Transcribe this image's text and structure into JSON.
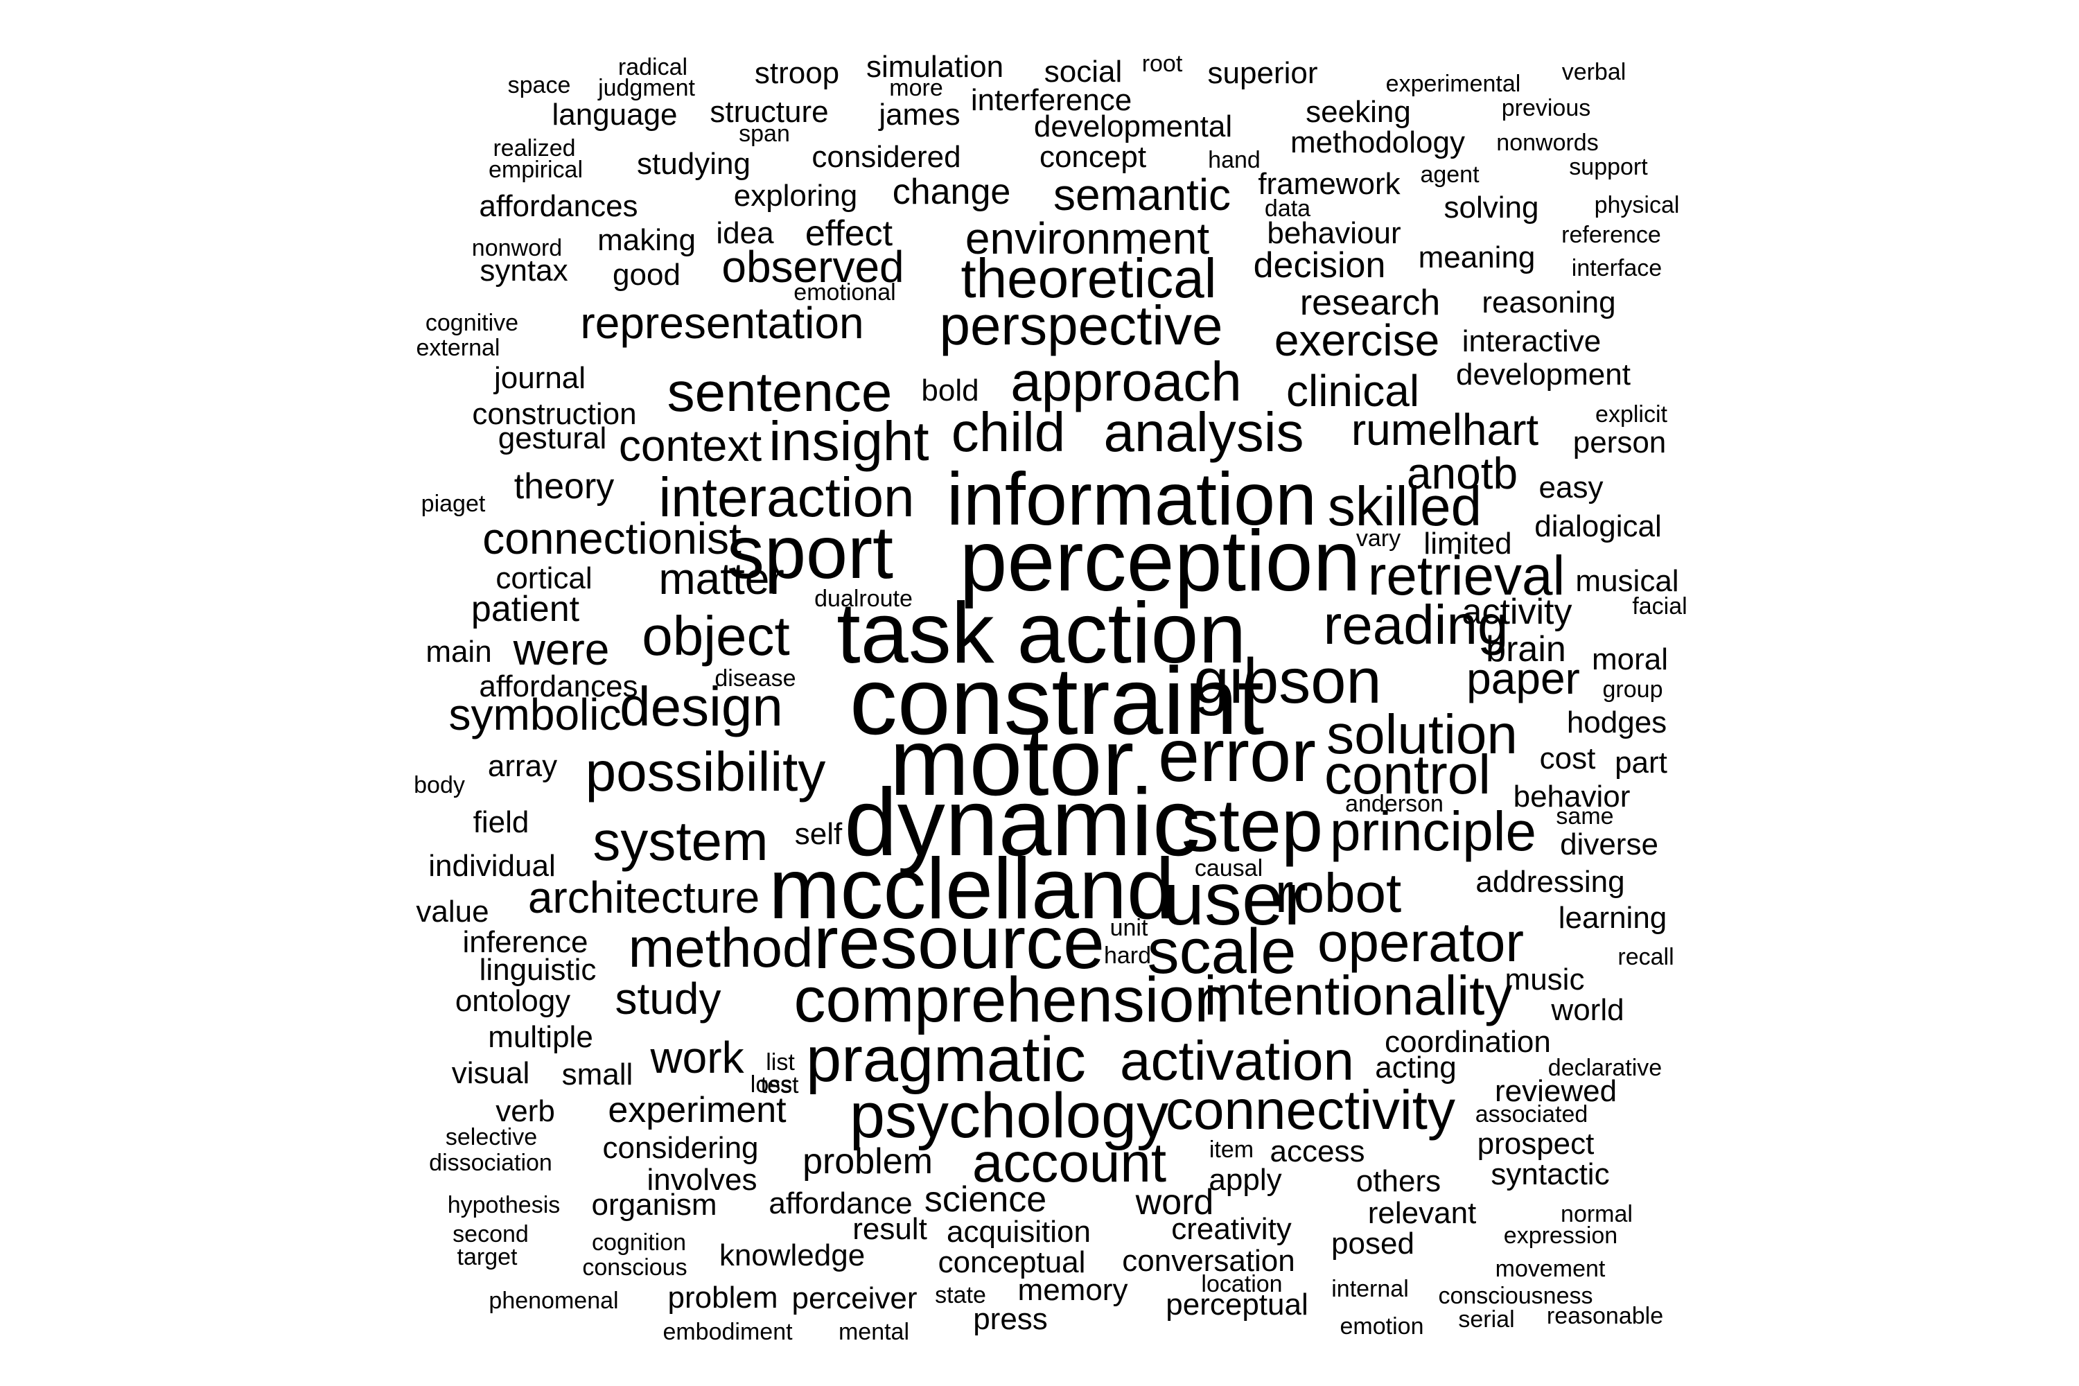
{
  "text_color": "#000000",
  "background_color": "#ffffff",
  "words": [
    {
      "text": "radical",
      "size": 1
    },
    {
      "text": "stroop",
      "size": 2
    },
    {
      "text": "simulation",
      "size": 2
    },
    {
      "text": "social",
      "size": 2
    },
    {
      "text": "root",
      "size": 1
    },
    {
      "text": "superior",
      "size": 2
    },
    {
      "text": "verbal",
      "size": 1
    },
    {
      "text": "space",
      "size": 1
    },
    {
      "text": "judgment",
      "size": 1
    },
    {
      "text": "more",
      "size": 1
    },
    {
      "text": "experimental",
      "size": 1
    },
    {
      "text": "language",
      "size": 2
    },
    {
      "text": "structure",
      "size": 2
    },
    {
      "text": "james",
      "size": 2
    },
    {
      "text": "interference",
      "size": 2
    },
    {
      "text": "seeking",
      "size": 2
    },
    {
      "text": "previous",
      "size": 1
    },
    {
      "text": "span",
      "size": 1
    },
    {
      "text": "developmental",
      "size": 2
    },
    {
      "text": "realized",
      "size": 1
    },
    {
      "text": "methodology",
      "size": 2
    },
    {
      "text": "nonwords",
      "size": 1
    },
    {
      "text": "empirical",
      "size": 1
    },
    {
      "text": "studying",
      "size": 2
    },
    {
      "text": "considered",
      "size": 2
    },
    {
      "text": "concept",
      "size": 2
    },
    {
      "text": "hand",
      "size": 1
    },
    {
      "text": "agent",
      "size": 1
    },
    {
      "text": "support",
      "size": 1
    },
    {
      "text": "framework",
      "size": 2
    },
    {
      "text": "exploring",
      "size": 2
    },
    {
      "text": "change",
      "size": 3
    },
    {
      "text": "semantic",
      "size": 4
    },
    {
      "text": "affordances",
      "size": 2
    },
    {
      "text": "data",
      "size": 1
    },
    {
      "text": "solving",
      "size": 2
    },
    {
      "text": "physical",
      "size": 1
    },
    {
      "text": "idea",
      "size": 2
    },
    {
      "text": "effect",
      "size": 3
    },
    {
      "text": "environment",
      "size": 4
    },
    {
      "text": "behaviour",
      "size": 2
    },
    {
      "text": "nonword",
      "size": 1
    },
    {
      "text": "making",
      "size": 2
    },
    {
      "text": "reference",
      "size": 1
    },
    {
      "text": "meaning",
      "size": 2
    },
    {
      "text": "observed",
      "size": 4
    },
    {
      "text": "decision",
      "size": 3
    },
    {
      "text": "syntax",
      "size": 2
    },
    {
      "text": "good",
      "size": 2
    },
    {
      "text": "interface",
      "size": 1
    },
    {
      "text": "theoretical",
      "size": 5
    },
    {
      "text": "emotional",
      "size": 1
    },
    {
      "text": "research",
      "size": 3
    },
    {
      "text": "reasoning",
      "size": 2
    },
    {
      "text": "cognitive",
      "size": 1
    },
    {
      "text": "representation",
      "size": 4
    },
    {
      "text": "perspective",
      "size": 5
    },
    {
      "text": "exercise",
      "size": 4
    },
    {
      "text": "external",
      "size": 1
    },
    {
      "text": "interactive",
      "size": 2
    },
    {
      "text": "journal",
      "size": 2
    },
    {
      "text": "development",
      "size": 2
    },
    {
      "text": "bold",
      "size": 2
    },
    {
      "text": "approach",
      "size": 5
    },
    {
      "text": "sentence",
      "size": 5
    },
    {
      "text": "clinical",
      "size": 4
    },
    {
      "text": "construction",
      "size": 2
    },
    {
      "text": "explicit",
      "size": 1
    },
    {
      "text": "rumelhart",
      "size": 4
    },
    {
      "text": "gestural",
      "size": 2
    },
    {
      "text": "context",
      "size": 4
    },
    {
      "text": "insight",
      "size": 5
    },
    {
      "text": "child",
      "size": 5
    },
    {
      "text": "analysis",
      "size": 5
    },
    {
      "text": "person",
      "size": 2
    },
    {
      "text": "anotb",
      "size": 4
    },
    {
      "text": "theory",
      "size": 3
    },
    {
      "text": "easy",
      "size": 2
    },
    {
      "text": "piaget",
      "size": 1
    },
    {
      "text": "interaction",
      "size": 5
    },
    {
      "text": "information",
      "size": 7
    },
    {
      "text": "skilled",
      "size": 5
    },
    {
      "text": "connectionist",
      "size": 4
    },
    {
      "text": "vary",
      "size": 1
    },
    {
      "text": "dialogical",
      "size": 2
    },
    {
      "text": "limited",
      "size": 2
    },
    {
      "text": "sport",
      "size": 7
    },
    {
      "text": "perception",
      "size": 8
    },
    {
      "text": "cortical",
      "size": 2
    },
    {
      "text": "matter",
      "size": 4
    },
    {
      "text": "retrieval",
      "size": 5
    },
    {
      "text": "musical",
      "size": 2
    },
    {
      "text": "dualroute",
      "size": 1
    },
    {
      "text": "patient",
      "size": 3
    },
    {
      "text": "activity",
      "size": 3
    },
    {
      "text": "facial",
      "size": 1
    },
    {
      "text": "task",
      "size": 8
    },
    {
      "text": "action",
      "size": 8
    },
    {
      "text": "reading",
      "size": 5
    },
    {
      "text": "main",
      "size": 2
    },
    {
      "text": "were",
      "size": 4
    },
    {
      "text": "object",
      "size": 5
    },
    {
      "text": "brain",
      "size": 3
    },
    {
      "text": "moral",
      "size": 2
    },
    {
      "text": "disease",
      "size": 1
    },
    {
      "text": "paper",
      "size": 4
    },
    {
      "text": "group",
      "size": 1
    },
    {
      "text": "affordances",
      "size": 2
    },
    {
      "text": "gibson",
      "size": 6
    },
    {
      "text": "constraint",
      "size": 9
    },
    {
      "text": "symbolic",
      "size": 4
    },
    {
      "text": "design",
      "size": 5
    },
    {
      "text": "hodges",
      "size": 2
    },
    {
      "text": "solution",
      "size": 5
    },
    {
      "text": "cost",
      "size": 2
    },
    {
      "text": "array",
      "size": 2
    },
    {
      "text": "motor",
      "size": 9
    },
    {
      "text": "error",
      "size": 7
    },
    {
      "text": "part",
      "size": 2
    },
    {
      "text": "possibility",
      "size": 5
    },
    {
      "text": "control",
      "size": 5
    },
    {
      "text": "body",
      "size": 1
    },
    {
      "text": "behavior",
      "size": 2
    },
    {
      "text": "anderson",
      "size": 1
    },
    {
      "text": "same",
      "size": 1
    },
    {
      "text": "field",
      "size": 2
    },
    {
      "text": "dynamic",
      "size": 9
    },
    {
      "text": "step",
      "size": 7
    },
    {
      "text": "principle",
      "size": 5
    },
    {
      "text": "system",
      "size": 5
    },
    {
      "text": "self",
      "size": 2
    },
    {
      "text": "diverse",
      "size": 2
    },
    {
      "text": "individual",
      "size": 2
    },
    {
      "text": "causal",
      "size": 1
    },
    {
      "text": "mcclelland",
      "size": 8
    },
    {
      "text": "addressing",
      "size": 2
    },
    {
      "text": "architecture",
      "size": 4
    },
    {
      "text": "user",
      "size": 7
    },
    {
      "text": "robot",
      "size": 5
    },
    {
      "text": "value",
      "size": 2
    },
    {
      "text": "learning",
      "size": 2
    },
    {
      "text": "unit",
      "size": 1
    },
    {
      "text": "inference",
      "size": 2
    },
    {
      "text": "operator",
      "size": 5
    },
    {
      "text": "method",
      "size": 5
    },
    {
      "text": "resource",
      "size": 7
    },
    {
      "text": "scale",
      "size": 6
    },
    {
      "text": "hard",
      "size": 1
    },
    {
      "text": "recall",
      "size": 1
    },
    {
      "text": "linguistic",
      "size": 2
    },
    {
      "text": "music",
      "size": 2
    },
    {
      "text": "intentionality",
      "size": 5
    },
    {
      "text": "ontology",
      "size": 2
    },
    {
      "text": "study",
      "size": 4
    },
    {
      "text": "comprehension",
      "size": 6
    },
    {
      "text": "world",
      "size": 2
    },
    {
      "text": "multiple",
      "size": 2
    },
    {
      "text": "coordination",
      "size": 2
    },
    {
      "text": "work",
      "size": 4
    },
    {
      "text": "list",
      "size": 1
    },
    {
      "text": "activation",
      "size": 5
    },
    {
      "text": "pragmatic",
      "size": 6
    },
    {
      "text": "acting",
      "size": 2
    },
    {
      "text": "declarative",
      "size": 1
    },
    {
      "text": "visual",
      "size": 2
    },
    {
      "text": "small",
      "size": 2
    },
    {
      "text": "loss",
      "size": 1
    },
    {
      "text": "test",
      "size": 1
    },
    {
      "text": "reviewed",
      "size": 2
    },
    {
      "text": "experiment",
      "size": 3
    },
    {
      "text": "connectivity",
      "size": 5
    },
    {
      "text": "verb",
      "size": 2
    },
    {
      "text": "psychology",
      "size": 6
    },
    {
      "text": "associated",
      "size": 1
    },
    {
      "text": "selective",
      "size": 1
    },
    {
      "text": "prospect",
      "size": 2
    },
    {
      "text": "considering",
      "size": 2
    },
    {
      "text": "item",
      "size": 1
    },
    {
      "text": "access",
      "size": 2
    },
    {
      "text": "dissociation",
      "size": 1
    },
    {
      "text": "problem",
      "size": 3
    },
    {
      "text": "account",
      "size": 5
    },
    {
      "text": "syntactic",
      "size": 2
    },
    {
      "text": "involves",
      "size": 2
    },
    {
      "text": "apply",
      "size": 2
    },
    {
      "text": "others",
      "size": 2
    },
    {
      "text": "hypothesis",
      "size": 1
    },
    {
      "text": "organism",
      "size": 2
    },
    {
      "text": "affordance",
      "size": 2
    },
    {
      "text": "science",
      "size": 3
    },
    {
      "text": "word",
      "size": 3
    },
    {
      "text": "normal",
      "size": 1
    },
    {
      "text": "relevant",
      "size": 2
    },
    {
      "text": "result",
      "size": 2
    },
    {
      "text": "creativity",
      "size": 2
    },
    {
      "text": "second",
      "size": 1
    },
    {
      "text": "acquisition",
      "size": 2
    },
    {
      "text": "expression",
      "size": 1
    },
    {
      "text": "cognition",
      "size": 1
    },
    {
      "text": "posed",
      "size": 2
    },
    {
      "text": "target",
      "size": 1
    },
    {
      "text": "knowledge",
      "size": 2
    },
    {
      "text": "conversation",
      "size": 2
    },
    {
      "text": "conscious",
      "size": 1
    },
    {
      "text": "conceptual",
      "size": 2
    },
    {
      "text": "movement",
      "size": 1
    },
    {
      "text": "location",
      "size": 1
    },
    {
      "text": "internal",
      "size": 1
    },
    {
      "text": "memory",
      "size": 2
    },
    {
      "text": "phenomenal",
      "size": 1
    },
    {
      "text": "problem",
      "size": 2
    },
    {
      "text": "perceiver",
      "size": 2
    },
    {
      "text": "state",
      "size": 1
    },
    {
      "text": "consciousness",
      "size": 1
    },
    {
      "text": "perceptual",
      "size": 2
    },
    {
      "text": "press",
      "size": 2
    },
    {
      "text": "serial",
      "size": 1
    },
    {
      "text": "reasonable",
      "size": 1
    },
    {
      "text": "embodiment",
      "size": 1
    },
    {
      "text": "mental",
      "size": 1
    },
    {
      "text": "emotion",
      "size": 1
    }
  ]
}
